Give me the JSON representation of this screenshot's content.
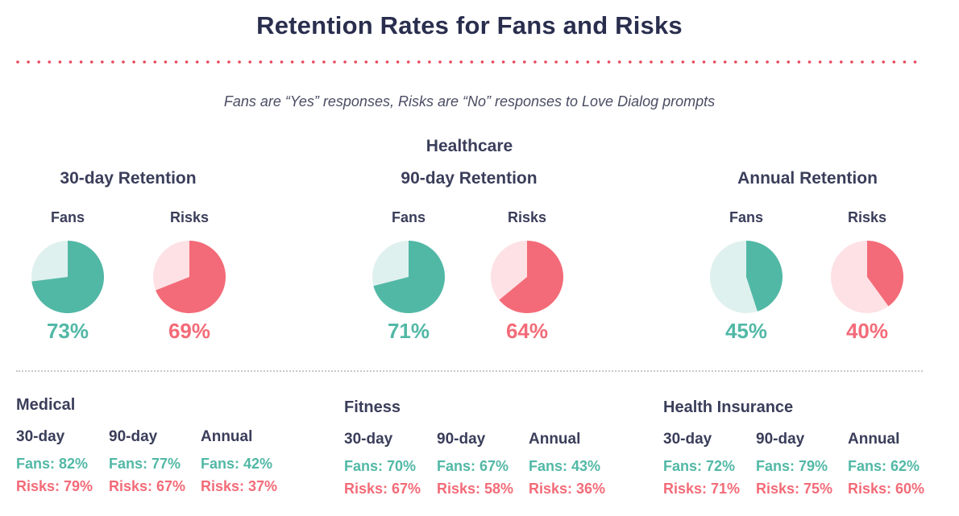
{
  "title": "Retention Rates for Fans and Risks",
  "subtitle": "Fans are “Yes” responses, Risks are “No” responses to Love Dialog prompts",
  "colors": {
    "fans": "#52b8a6",
    "fans_light": "#dff1ee",
    "risks": "#f36b78",
    "risks_light": "#fde1e5",
    "dots": "#e8475a"
  },
  "chart_data": {
    "type": "pie",
    "section_title": "Healthcare",
    "groups": [
      {
        "title": "30-day Retention",
        "fans_label": "Fans",
        "risks_label": "Risks",
        "fans_value": 73,
        "fans_text": "73%",
        "risks_value": 69,
        "risks_text": "69%"
      },
      {
        "title": "90-day Retention",
        "fans_label": "Fans",
        "risks_label": "Risks",
        "fans_value": 71,
        "fans_text": "71%",
        "risks_value": 64,
        "risks_text": "64%"
      },
      {
        "title": "Annual Retention",
        "fans_label": "Fans",
        "risks_label": "Risks",
        "fans_value": 45,
        "fans_text": "45%",
        "risks_value": 40,
        "risks_text": "40%"
      }
    ]
  },
  "breakdowns": [
    {
      "title": "Medical",
      "periods": [
        {
          "label": "30-day",
          "fans_label": "Fans: ",
          "fans": "82%",
          "risks_label": "Risks: ",
          "risks": "79%"
        },
        {
          "label": "90-day",
          "fans_label": "Fans: ",
          "fans": "77%",
          "risks_label": "Risks: ",
          "risks": "67%"
        },
        {
          "label": "Annual",
          "fans_label": "Fans: ",
          "fans": "42%",
          "risks_label": "Risks: ",
          "risks": "37%"
        }
      ]
    },
    {
      "title": "Fitness",
      "periods": [
        {
          "label": "30-day",
          "fans_label": "Fans: ",
          "fans": "70%",
          "risks_label": "Risks: ",
          "risks": "67%"
        },
        {
          "label": "90-day",
          "fans_label": "Fans: ",
          "fans": "67%",
          "risks_label": "Risks: ",
          "risks": "58%"
        },
        {
          "label": "Annual",
          "fans_label": "Fans: ",
          "fans": "43%",
          "risks_label": "Risks: ",
          "risks": "36%"
        }
      ]
    },
    {
      "title": "Health Insurance",
      "periods": [
        {
          "label": "30-day",
          "fans_label": "Fans: ",
          "fans": "72%",
          "risks_label": "Risks: ",
          "risks": "71%"
        },
        {
          "label": "90-day",
          "fans_label": "Fans: ",
          "fans": "79%",
          "risks_label": "Risks: ",
          "risks": "75%"
        },
        {
          "label": "Annual",
          "fans_label": "Fans: ",
          "fans": "62%",
          "risks_label": "Risks: ",
          "risks": "60%"
        }
      ]
    }
  ]
}
